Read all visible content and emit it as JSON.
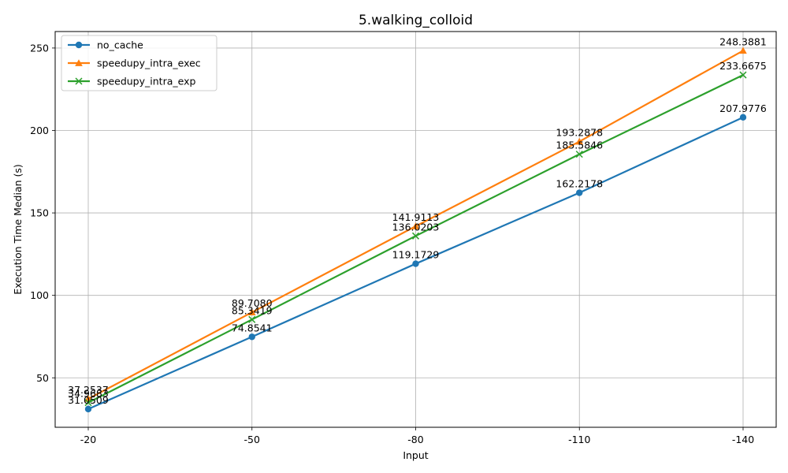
{
  "chart_data": {
    "type": "line",
    "title": "5.walking_colloid",
    "xlabel": "Input",
    "ylabel": "Execution Time Median (s)",
    "categories": [
      "-20",
      "-50",
      "-80",
      "-110",
      "-140"
    ],
    "ylim": [
      20,
      260
    ],
    "yticks": [
      50,
      100,
      150,
      200,
      250
    ],
    "grid": true,
    "legend_position": "top-left",
    "series": [
      {
        "name": "no_cache",
        "color": "#1f77b4",
        "marker": "circle",
        "values": [
          31.0509,
          74.8541,
          119.1729,
          162.2178,
          207.9776
        ],
        "labels": [
          "31.0509",
          "74.8541",
          "119.1729",
          "162.2178",
          "207.9776"
        ]
      },
      {
        "name": "speedupy_intra_exec",
        "color": "#ff7f0e",
        "marker": "triangle",
        "values": [
          37.2537,
          89.708,
          141.9113,
          193.2878,
          248.3881
        ],
        "labels": [
          "37.2537",
          "89.7080",
          "141.9113",
          "193.2878",
          "248.3881"
        ]
      },
      {
        "name": "speedupy_intra_exp",
        "color": "#2ca02c",
        "marker": "x",
        "values": [
          34.9683,
          85.3419,
          136.0203,
          185.5846,
          233.6675
        ],
        "labels": [
          "34.9683",
          "85.3419",
          "136.0203",
          "185.5846",
          "233.6675"
        ]
      }
    ]
  }
}
